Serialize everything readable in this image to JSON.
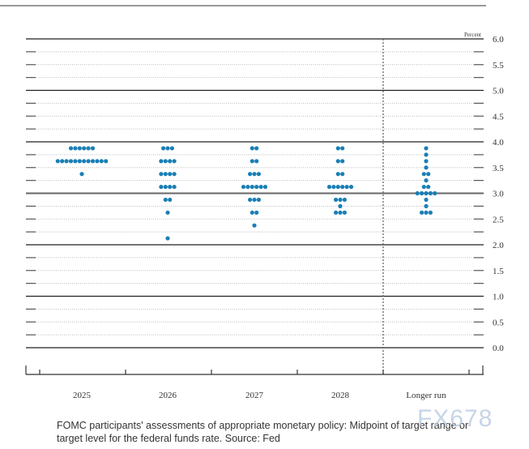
{
  "chart_data": {
    "type": "scatter",
    "title": "",
    "ylabel": "Percent",
    "xlabel": "",
    "ylim": [
      0,
      6
    ],
    "yticks": [
      "0.0",
      "0.5",
      "1.0",
      "1.5",
      "2.0",
      "2.5",
      "3.0",
      "3.5",
      "4.0",
      "4.5",
      "5.0",
      "5.5",
      "6.0"
    ],
    "categories": [
      "2025",
      "2026",
      "2027",
      "2028",
      "Longer run"
    ],
    "dot_color": "#1a7fb5",
    "dots": [
      {
        "category": "2025",
        "levels": [
          {
            "rate": 3.875,
            "count": 6
          },
          {
            "rate": 3.625,
            "count": 12
          },
          {
            "rate": 3.375,
            "count": 1
          }
        ]
      },
      {
        "category": "2026",
        "levels": [
          {
            "rate": 3.875,
            "count": 3
          },
          {
            "rate": 3.625,
            "count": 4
          },
          {
            "rate": 3.375,
            "count": 4
          },
          {
            "rate": 3.125,
            "count": 4
          },
          {
            "rate": 2.875,
            "count": 2
          },
          {
            "rate": 2.625,
            "count": 1
          },
          {
            "rate": 2.125,
            "count": 1
          }
        ]
      },
      {
        "category": "2027",
        "levels": [
          {
            "rate": 3.875,
            "count": 2
          },
          {
            "rate": 3.625,
            "count": 2
          },
          {
            "rate": 3.375,
            "count": 3
          },
          {
            "rate": 3.125,
            "count": 6
          },
          {
            "rate": 2.875,
            "count": 3
          },
          {
            "rate": 2.625,
            "count": 2
          },
          {
            "rate": 2.375,
            "count": 1
          }
        ]
      },
      {
        "category": "2028",
        "levels": [
          {
            "rate": 3.875,
            "count": 2
          },
          {
            "rate": 3.625,
            "count": 2
          },
          {
            "rate": 3.375,
            "count": 2
          },
          {
            "rate": 3.125,
            "count": 6
          },
          {
            "rate": 2.875,
            "count": 3
          },
          {
            "rate": 2.75,
            "count": 1
          },
          {
            "rate": 2.625,
            "count": 3
          }
        ]
      },
      {
        "category": "Longer run",
        "levels": [
          {
            "rate": 3.875,
            "count": 1
          },
          {
            "rate": 3.75,
            "count": 1
          },
          {
            "rate": 3.625,
            "count": 1
          },
          {
            "rate": 3.5,
            "count": 1
          },
          {
            "rate": 3.375,
            "count": 2
          },
          {
            "rate": 3.25,
            "count": 1
          },
          {
            "rate": 3.125,
            "count": 2
          },
          {
            "rate": 3.0,
            "count": 5
          },
          {
            "rate": 2.875,
            "count": 1
          },
          {
            "rate": 2.75,
            "count": 1
          },
          {
            "rate": 2.625,
            "count": 3
          }
        ]
      }
    ],
    "grid": true
  },
  "caption": "FOMC participants' assessments of appropriate monetary policy: Midpoint of target range or target level for the federal funds rate. Source: Fed",
  "watermark": "FX678"
}
